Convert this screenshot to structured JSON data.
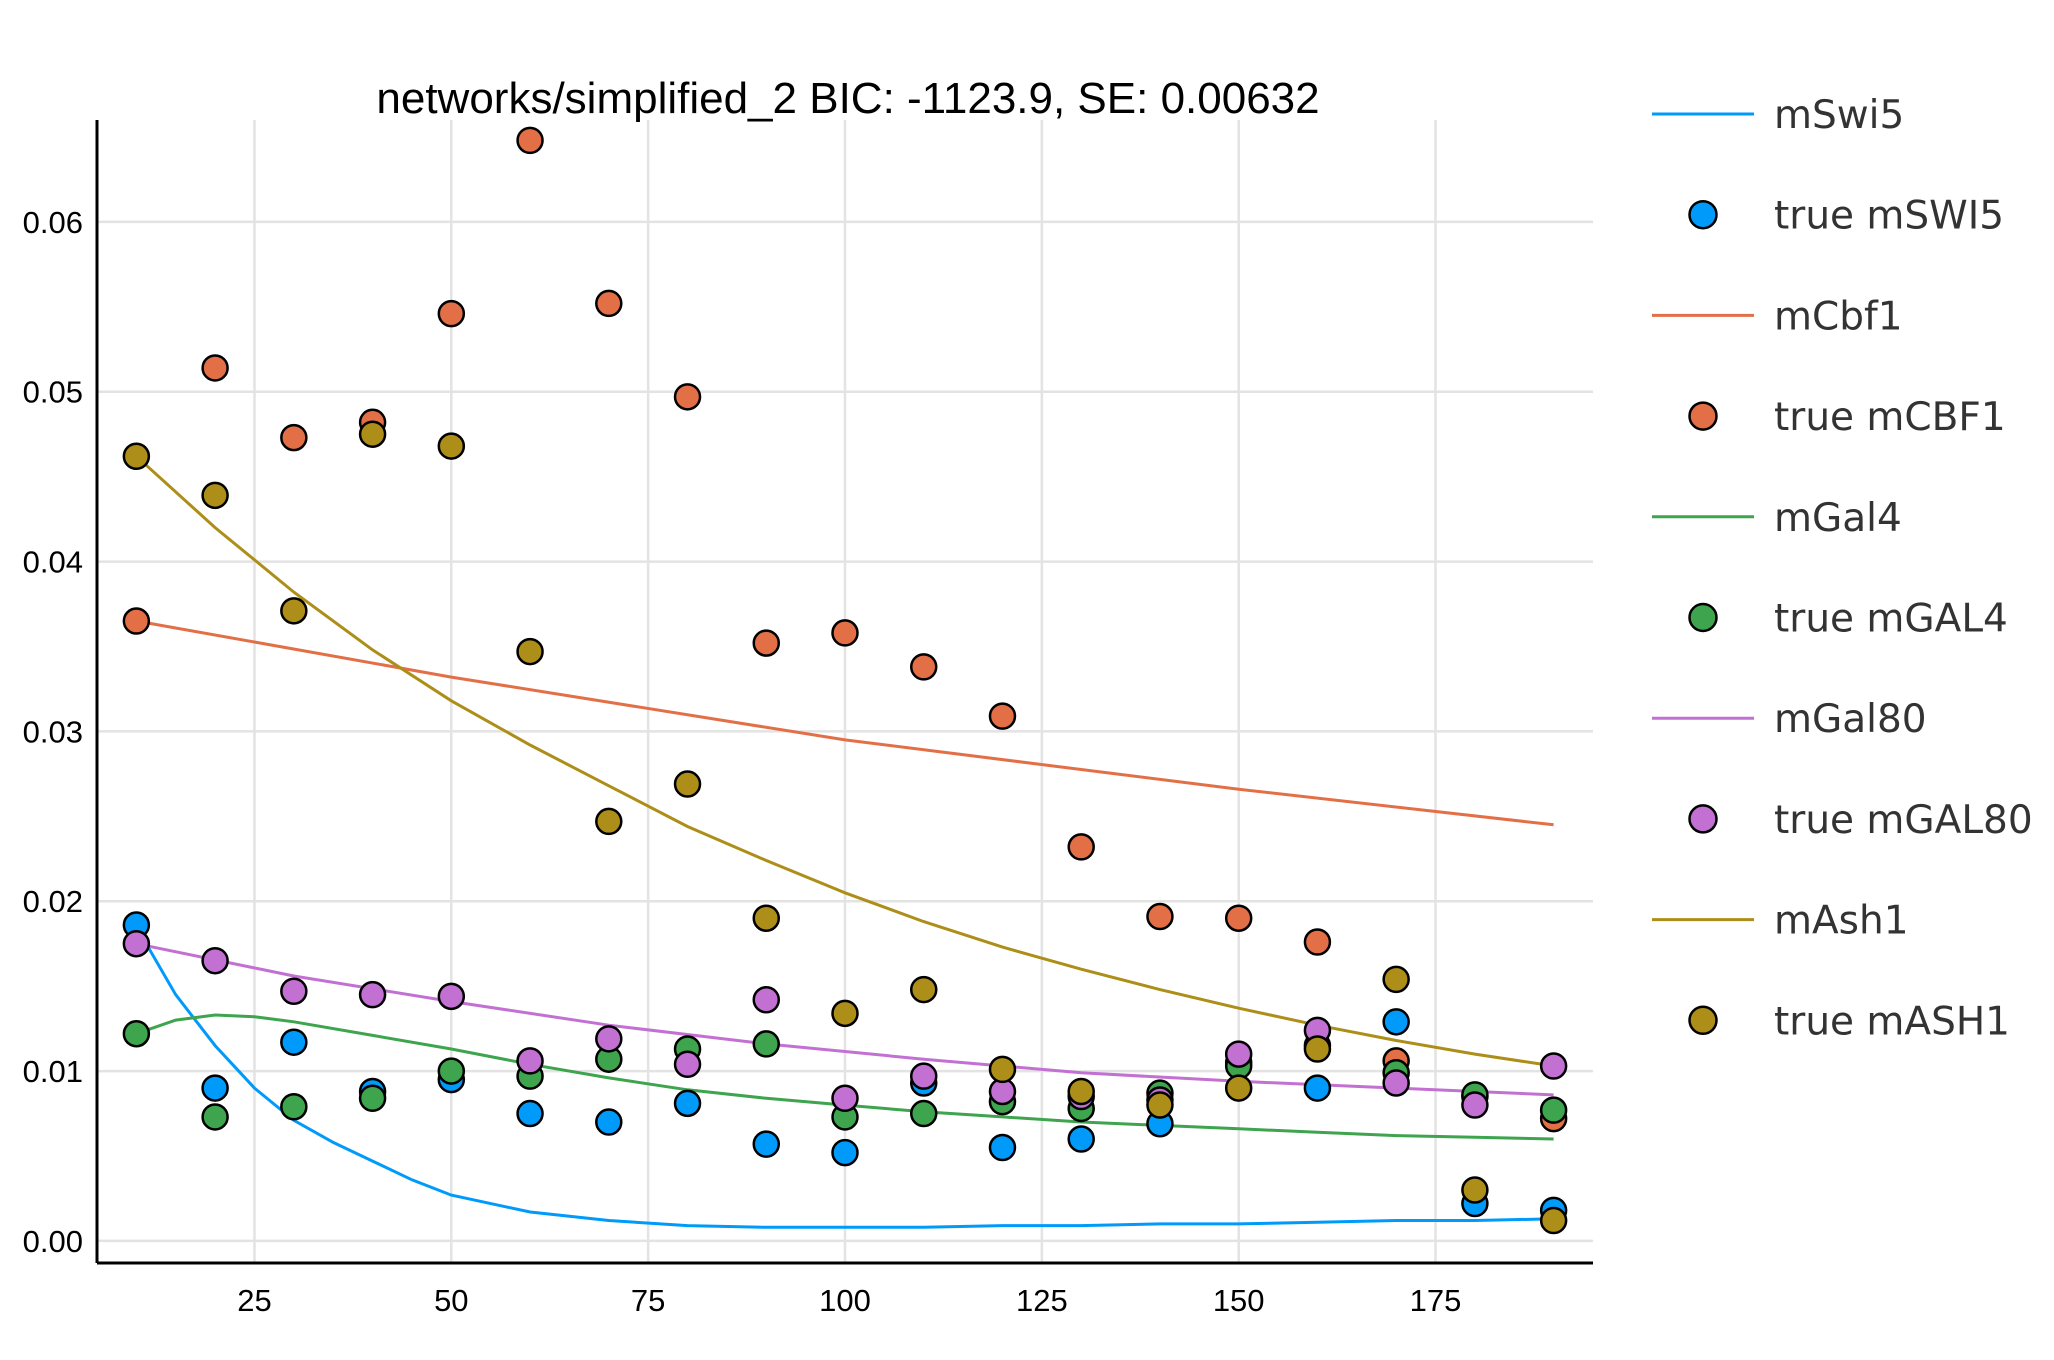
{
  "chart_data": {
    "type": "scatter",
    "title": "networks/simplified_2 BIC: -1123.9, SE: 0.00632",
    "xlabel": "",
    "ylabel": "",
    "xlim": [
      5,
      195
    ],
    "ylim": [
      -0.0013,
      0.066
    ],
    "xticks": [
      25,
      50,
      75,
      100,
      125,
      150,
      175
    ],
    "yticks": [
      0.0,
      0.01,
      0.02,
      0.03,
      0.04,
      0.05,
      0.06
    ],
    "xtick_labels": [
      "25",
      "50",
      "75",
      "100",
      "125",
      "150",
      "175"
    ],
    "ytick_labels": [
      "0.00",
      "0.01",
      "0.02",
      "0.03",
      "0.04",
      "0.05",
      "0.06"
    ],
    "grid": true,
    "legend_position": "outside-right",
    "x": [
      10,
      20,
      30,
      40,
      50,
      60,
      70,
      80,
      90,
      100,
      110,
      120,
      130,
      140,
      150,
      160,
      170,
      180,
      190
    ],
    "series": [
      {
        "name": "mSwi5",
        "kind": "line",
        "color": "#009AFA",
        "x": [
          10,
          15,
          20,
          25,
          30,
          35,
          40,
          45,
          50,
          60,
          70,
          80,
          90,
          100,
          110,
          120,
          130,
          140,
          150,
          160,
          170,
          180,
          190
        ],
        "values": [
          0.0185,
          0.0145,
          0.0115,
          0.009,
          0.0071,
          0.0058,
          0.0047,
          0.0036,
          0.0027,
          0.0017,
          0.0012,
          0.0009,
          0.0008,
          0.0008,
          0.0008,
          0.0009,
          0.0009,
          0.001,
          0.001,
          0.0011,
          0.0012,
          0.0012,
          0.0013
        ]
      },
      {
        "name": "true mSWI5",
        "kind": "scatter",
        "color": "#009AFA",
        "values": [
          0.0186,
          0.009,
          0.0117,
          0.0088,
          0.0095,
          0.0075,
          0.007,
          0.0081,
          0.0057,
          0.0052,
          0.0093,
          0.0055,
          0.006,
          0.0069,
          0.0105,
          0.009,
          0.0129,
          0.0022,
          0.0018
        ]
      },
      {
        "name": "mCbf1",
        "kind": "line",
        "color": "#E36F47",
        "x": [
          10,
          50,
          100,
          150,
          190
        ],
        "values": [
          0.0365,
          0.0332,
          0.0295,
          0.0266,
          0.0245
        ]
      },
      {
        "name": "true mCBF1",
        "kind": "scatter",
        "color": "#E36F47",
        "values": [
          0.0365,
          0.0514,
          0.0473,
          0.0482,
          0.0546,
          0.0648,
          0.0552,
          0.0497,
          0.0352,
          0.0358,
          0.0338,
          0.0309,
          0.0232,
          0.0191,
          0.019,
          0.0176,
          0.0106,
          0.0085,
          0.0072
        ]
      },
      {
        "name": "mGal4",
        "kind": "line",
        "color": "#3EA44E",
        "x": [
          10,
          15,
          20,
          25,
          30,
          40,
          50,
          60,
          70,
          80,
          90,
          100,
          110,
          120,
          130,
          140,
          150,
          160,
          170,
          180,
          190
        ],
        "values": [
          0.0122,
          0.013,
          0.0133,
          0.0132,
          0.0129,
          0.0121,
          0.0113,
          0.0104,
          0.0096,
          0.0089,
          0.0084,
          0.008,
          0.0076,
          0.0073,
          0.007,
          0.0068,
          0.0066,
          0.0064,
          0.0062,
          0.0061,
          0.006
        ]
      },
      {
        "name": "true mGAL4",
        "kind": "scatter",
        "color": "#3EA44E",
        "values": [
          0.0122,
          0.0073,
          0.0079,
          0.0084,
          0.01,
          0.0097,
          0.0107,
          0.0113,
          0.0116,
          0.0073,
          0.0075,
          0.0082,
          0.0078,
          0.0087,
          0.0103,
          0.0115,
          0.0099,
          0.0086,
          0.0077
        ]
      },
      {
        "name": "mGal80",
        "kind": "line",
        "color": "#C271D2",
        "x": [
          10,
          30,
          50,
          70,
          90,
          110,
          130,
          150,
          170,
          190
        ],
        "values": [
          0.0175,
          0.0156,
          0.0141,
          0.0127,
          0.0116,
          0.0107,
          0.0099,
          0.0094,
          0.009,
          0.0086
        ]
      },
      {
        "name": "true mGAL80",
        "kind": "scatter",
        "color": "#C271D2",
        "values": [
          0.0175,
          0.0165,
          0.0147,
          0.0145,
          0.0144,
          0.0106,
          0.0119,
          0.0104,
          0.0142,
          0.0084,
          0.0097,
          0.0088,
          0.0085,
          0.0083,
          0.011,
          0.0124,
          0.0093,
          0.008,
          0.0103
        ]
      },
      {
        "name": "mAsh1",
        "kind": "line",
        "color": "#AC8E18",
        "x": [
          10,
          20,
          30,
          40,
          50,
          55,
          60,
          70,
          80,
          90,
          100,
          110,
          120,
          130,
          140,
          150,
          160,
          170,
          180,
          190
        ],
        "values": [
          0.0462,
          0.042,
          0.0382,
          0.0348,
          0.0318,
          0.0305,
          0.0292,
          0.0268,
          0.0244,
          0.0224,
          0.0205,
          0.0188,
          0.0173,
          0.016,
          0.0148,
          0.0137,
          0.0127,
          0.0118,
          0.011,
          0.0103
        ]
      },
      {
        "name": "true mASH1",
        "kind": "scatter",
        "color": "#AC8E18",
        "values": [
          0.0462,
          0.0439,
          0.0371,
          0.0475,
          0.0468,
          0.0347,
          0.0247,
          0.0269,
          0.019,
          0.0134,
          0.0148,
          0.0101,
          0.0088,
          0.008,
          0.009,
          0.0113,
          0.0154,
          0.003,
          0.0012
        ]
      }
    ]
  }
}
